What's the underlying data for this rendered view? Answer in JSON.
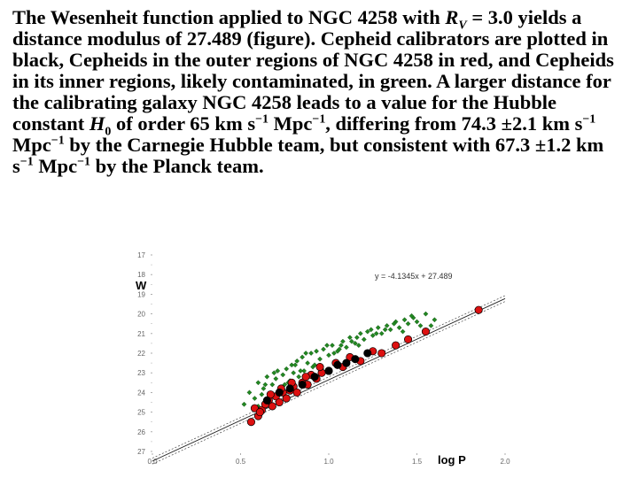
{
  "caption": {
    "p1": "The Wesenheit function applied to NGC 4258 with ",
    "rv_sym": "R",
    "rv_sub": "V",
    "p2": " = 3.0 yields a distance modulus of 27.489 (figure). Cepheid calibrators are plotted in black, Cepheids in the outer regions of NGC 4258 in red, and Cepheids in its inner regions, likely contaminated, in green. A larger distance for the calibrating galaxy NGC 4258 leads to a value for the Hubble constant ",
    "h_sym": "H",
    "h_sub": "0",
    "p3": " of order 65 km s",
    "sup1": "−1",
    "p4": " Mpc",
    "sup2": "−1",
    "p5": ", differing from 74.3 ±2.1 km s",
    "sup3": "−1",
    "p6": " Mpc",
    "sup4": "−1",
    "p7": " by the Carnegie Hubble team, but consistent with 67.3 ±1.2 km s",
    "sup5": "−1",
    "p8": " Mpc",
    "sup6": "−1",
    "p9": " by the Planck team."
  },
  "chart_data": {
    "type": "scatter",
    "xlabel": "log P",
    "ylabel": "W",
    "annotation": "y = -4.1345x + 27.489",
    "xlim": [
      0.0,
      2.0
    ],
    "ylim": [
      17,
      27
    ],
    "y_inverted": true,
    "grid": false,
    "xticks": [
      "0.0",
      "0.5",
      "1.0",
      "1.5",
      "2.0"
    ],
    "yticks": [
      "17",
      "18",
      "19",
      "20",
      "21",
      "22",
      "23",
      "24",
      "25",
      "26",
      "27"
    ],
    "fit": {
      "slope": -4.1345,
      "intercept": 27.489,
      "x_range": [
        0.0,
        2.0
      ]
    },
    "colors": {
      "calibrators": "#000000",
      "outer": "#dd1111",
      "inner": "#228822"
    },
    "series": [
      {
        "color": "green",
        "marker": "small",
        "x": [
          0.52,
          0.55,
          0.58,
          0.6,
          0.62,
          0.63,
          0.65,
          0.66,
          0.68,
          0.7,
          0.71,
          0.72,
          0.74,
          0.75,
          0.76,
          0.78,
          0.79,
          0.8,
          0.82,
          0.83,
          0.85,
          0.86,
          0.88,
          0.9,
          0.91,
          0.93,
          0.95,
          0.97,
          1.0,
          1.02,
          1.05,
          1.08,
          1.1,
          1.12,
          1.15,
          1.18,
          1.2,
          1.22,
          1.25,
          1.28,
          1.3,
          1.33,
          1.35,
          1.38,
          1.4,
          1.43,
          1.45,
          1.48,
          1.5,
          1.55,
          1.6,
          0.6,
          0.67,
          0.73,
          0.77,
          0.84,
          0.92,
          0.96,
          1.03,
          1.07,
          1.13,
          1.17,
          1.24,
          1.32,
          1.42,
          1.52,
          0.64,
          0.69,
          0.81,
          0.87,
          0.99,
          1.06,
          1.16,
          1.27,
          1.37,
          1.47,
          1.58
        ],
        "y": [
          24.6,
          24.0,
          24.3,
          23.5,
          24.1,
          23.8,
          23.2,
          24.4,
          23.6,
          23.3,
          22.9,
          23.9,
          23.1,
          23.6,
          22.8,
          23.4,
          22.6,
          23.0,
          22.4,
          23.2,
          22.2,
          22.9,
          22.5,
          22.0,
          22.7,
          21.9,
          22.3,
          21.8,
          22.1,
          21.6,
          21.9,
          21.4,
          21.7,
          21.2,
          21.5,
          21.0,
          21.3,
          20.9,
          21.1,
          20.7,
          21.0,
          20.6,
          20.8,
          20.4,
          20.7,
          20.3,
          20.5,
          20.2,
          20.4,
          20.0,
          20.3,
          24.7,
          24.2,
          23.8,
          23.5,
          22.9,
          22.6,
          22.8,
          22.0,
          21.6,
          21.4,
          21.6,
          20.8,
          20.8,
          20.9,
          20.6,
          23.6,
          23.0,
          22.6,
          22.0,
          21.6,
          21.8,
          21.2,
          21.0,
          20.5,
          20.1,
          20.6
        ]
      },
      {
        "color": "red",
        "marker": "large",
        "x": [
          0.56,
          0.58,
          0.6,
          0.62,
          0.64,
          0.66,
          0.68,
          0.7,
          0.72,
          0.74,
          0.76,
          0.78,
          0.8,
          0.82,
          0.85,
          0.88,
          0.9,
          0.93,
          0.96,
          1.0,
          1.04,
          1.08,
          1.12,
          1.18,
          1.25,
          1.3,
          1.38,
          1.45,
          1.55,
          1.85,
          0.61,
          0.67,
          0.73,
          0.79,
          0.87,
          0.95
        ],
        "y": [
          25.5,
          24.8,
          25.2,
          24.9,
          24.6,
          24.4,
          24.7,
          24.2,
          24.5,
          24.0,
          24.3,
          23.9,
          23.7,
          24.0,
          23.5,
          23.6,
          23.1,
          23.3,
          23.0,
          22.9,
          22.5,
          22.7,
          22.2,
          22.4,
          21.9,
          22.0,
          21.6,
          21.3,
          20.9,
          19.8,
          25.0,
          24.1,
          23.8,
          23.5,
          23.2,
          22.7
        ]
      },
      {
        "color": "black",
        "marker": "large",
        "x": [
          0.65,
          0.72,
          0.78,
          0.85,
          0.92,
          1.0,
          1.05,
          1.1,
          1.15,
          1.22
        ],
        "y": [
          24.4,
          24.0,
          23.8,
          23.6,
          23.2,
          22.9,
          22.6,
          22.5,
          22.3,
          22.0
        ]
      }
    ]
  }
}
